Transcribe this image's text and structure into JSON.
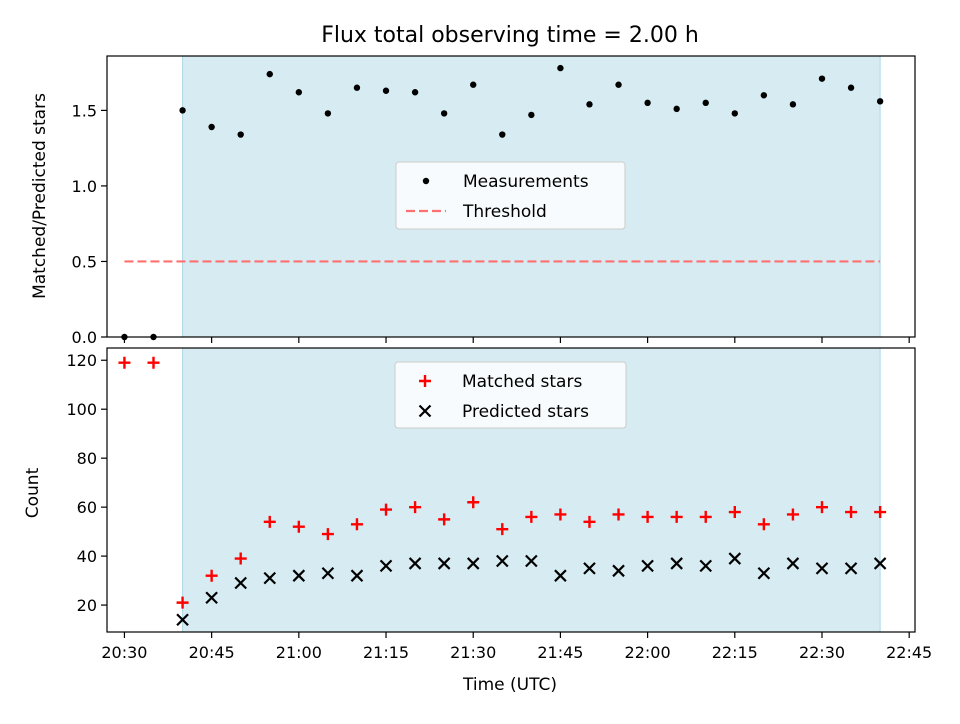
{
  "chart_data": [
    {
      "type": "scatter",
      "title": "Flux total observing time = 2.00 h",
      "ylabel": "Matched/Predicted stars",
      "xlabel": "",
      "xlim": [
        "20:27",
        "22:46"
      ],
      "ylim": [
        0,
        1.86
      ],
      "yticks": [
        0.0,
        0.5,
        1.0,
        1.5
      ],
      "ytick_labels": [
        "0.0",
        "0.5",
        "1.0",
        "1.5"
      ],
      "x_tick_labels_shown": false,
      "shaded_interval": {
        "start": "20:40",
        "end": "22:40",
        "color": "#add8e6"
      },
      "x": [
        "20:30",
        "20:35",
        "20:40",
        "20:45",
        "20:50",
        "20:55",
        "21:00",
        "21:05",
        "21:10",
        "21:15",
        "21:20",
        "21:25",
        "21:30",
        "21:35",
        "21:40",
        "21:45",
        "21:50",
        "21:55",
        "22:00",
        "22:05",
        "22:10",
        "22:15",
        "22:20",
        "22:25",
        "22:30",
        "22:35",
        "22:40"
      ],
      "series": [
        {
          "name": "Measurements",
          "marker": "dot",
          "color": "#000000",
          "values": [
            0.0,
            0.0,
            1.5,
            1.39,
            1.34,
            1.74,
            1.62,
            1.48,
            1.65,
            1.63,
            1.62,
            1.48,
            1.67,
            1.34,
            1.47,
            1.78,
            1.54,
            1.67,
            1.55,
            1.51,
            1.55,
            1.48,
            1.6,
            1.54,
            1.71,
            1.65,
            1.56
          ]
        },
        {
          "name": "Threshold",
          "style": "dashed-line",
          "color": "#ff7070",
          "x_range": [
            "20:30",
            "22:40"
          ],
          "value": 0.5
        }
      ],
      "legend": {
        "placement": "center",
        "entries": [
          "Measurements",
          "Threshold"
        ]
      }
    },
    {
      "type": "scatter",
      "title": "",
      "ylabel": "Count",
      "xlabel": "Time (UTC)",
      "xlim": [
        "20:27",
        "22:46"
      ],
      "ylim": [
        9,
        125
      ],
      "yticks": [
        20,
        40,
        60,
        80,
        100,
        120
      ],
      "ytick_labels": [
        "20",
        "40",
        "60",
        "80",
        "100",
        "120"
      ],
      "xticks": [
        "20:30",
        "20:45",
        "21:00",
        "21:15",
        "21:30",
        "21:45",
        "22:00",
        "22:15",
        "22:30",
        "22:45"
      ],
      "shaded_interval": {
        "start": "20:40",
        "end": "22:40",
        "color": "#add8e6"
      },
      "x": [
        "20:30",
        "20:35",
        "20:40",
        "20:45",
        "20:50",
        "20:55",
        "21:00",
        "21:05",
        "21:10",
        "21:15",
        "21:20",
        "21:25",
        "21:30",
        "21:35",
        "21:40",
        "21:45",
        "21:50",
        "21:55",
        "22:00",
        "22:05",
        "22:10",
        "22:15",
        "22:20",
        "22:25",
        "22:30",
        "22:35",
        "22:40"
      ],
      "series": [
        {
          "name": "Matched stars",
          "marker": "plus",
          "color": "#ff0000",
          "values": [
            119,
            119,
            21,
            32,
            39,
            54,
            52,
            49,
            53,
            59,
            60,
            55,
            62,
            51,
            56,
            57,
            54,
            57,
            56,
            56,
            56,
            58,
            53,
            57,
            60,
            58,
            58
          ]
        },
        {
          "name": "Predicted stars",
          "marker": "x",
          "color": "#000000",
          "values": [
            null,
            null,
            14,
            23,
            29,
            31,
            32,
            33,
            32,
            36,
            37,
            37,
            37,
            38,
            38,
            32,
            35,
            34,
            36,
            37,
            36,
            39,
            33,
            37,
            35,
            35,
            37
          ]
        }
      ],
      "legend": {
        "placement": "top-center",
        "entries": [
          "Matched stars",
          "Predicted stars"
        ]
      }
    }
  ]
}
